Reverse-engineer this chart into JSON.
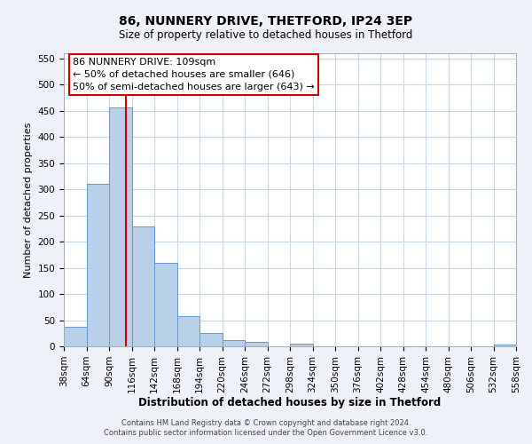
{
  "title": "86, NUNNERY DRIVE, THETFORD, IP24 3EP",
  "subtitle": "Size of property relative to detached houses in Thetford",
  "xlabel": "Distribution of detached houses by size in Thetford",
  "ylabel": "Number of detached properties",
  "bin_edges": [
    38,
    64,
    90,
    116,
    142,
    168,
    194,
    220,
    246,
    272,
    298,
    324,
    350,
    376,
    402,
    428,
    454,
    480,
    506,
    532,
    558
  ],
  "bar_heights": [
    38,
    311,
    457,
    229,
    160,
    58,
    26,
    12,
    8,
    0,
    5,
    0,
    0,
    0,
    0,
    0,
    0,
    0,
    0,
    3
  ],
  "bar_color": "#b8d0e8",
  "bar_edge_color": "#6699cc",
  "grid_color": "#c8d8e8",
  "vline_x": 109,
  "vline_color": "#cc0000",
  "annotation_title": "86 NUNNERY DRIVE: 109sqm",
  "annotation_line1": "← 50% of detached houses are smaller (646)",
  "annotation_line2": "50% of semi-detached houses are larger (643) →",
  "annotation_box_color": "#cc0000",
  "ylim": [
    0,
    560
  ],
  "yticks": [
    0,
    50,
    100,
    150,
    200,
    250,
    300,
    350,
    400,
    450,
    500,
    550
  ],
  "xtick_labels": [
    "38sqm",
    "64sqm",
    "90sqm",
    "116sqm",
    "142sqm",
    "168sqm",
    "194sqm",
    "220sqm",
    "246sqm",
    "272sqm",
    "298sqm",
    "324sqm",
    "350sqm",
    "376sqm",
    "402sqm",
    "428sqm",
    "454sqm",
    "480sqm",
    "506sqm",
    "532sqm",
    "558sqm"
  ],
  "footer1": "Contains HM Land Registry data © Crown copyright and database right 2024.",
  "footer2": "Contains public sector information licensed under the Open Government Licence v3.0.",
  "bg_color": "#eef2f8",
  "plot_bg_color": "#ffffff"
}
